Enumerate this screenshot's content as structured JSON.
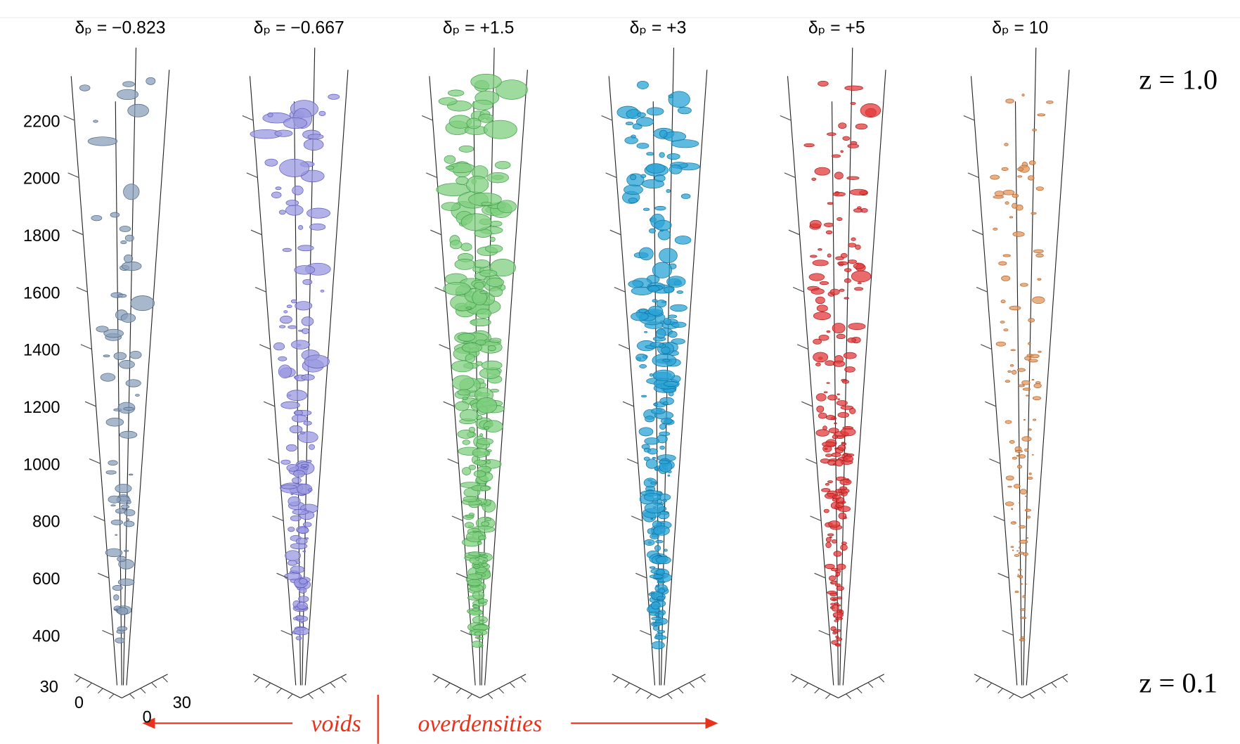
{
  "panels": [
    {
      "title": "δₚ = −0.823"
    },
    {
      "title": "δₚ = −0.667"
    },
    {
      "title": "δₚ = +1.5"
    },
    {
      "title": "δₚ = +3"
    },
    {
      "title": "δₚ = +5"
    },
    {
      "title": "δₚ = 10"
    }
  ],
  "y_axis": {
    "ticks": [
      "2200",
      "2000",
      "1800",
      "1600",
      "1400",
      "1200",
      "1000",
      "800",
      "600",
      "400"
    ]
  },
  "base_axis": {
    "ticks": [
      "30",
      "0",
      "0",
      "30"
    ]
  },
  "redshift_labels": {
    "top": "z = 1.0",
    "bottom": "z = 0.1"
  },
  "annotation": {
    "left": "voids",
    "right": "overdensities"
  }
}
